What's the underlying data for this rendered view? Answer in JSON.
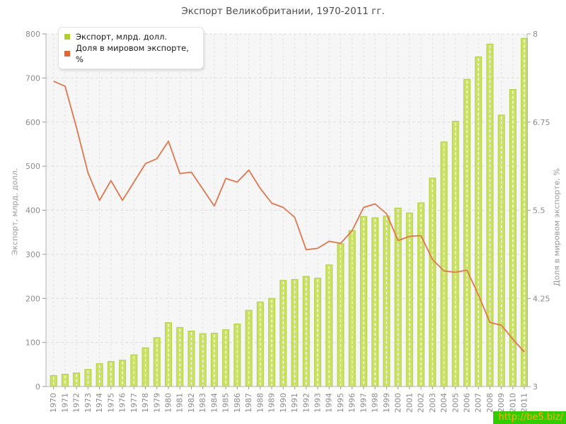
{
  "title": "Экспорт Великобритании, 1970-2011 гг.",
  "legend": {
    "items": [
      {
        "label": "Экспорт, млрд. долл.",
        "color": "#aed027"
      },
      {
        "label": "Доля в мировом экспорте, %",
        "color": "#e2662c"
      }
    ]
  },
  "watermark": {
    "text": "http://be5.biz/",
    "bg_color": "#33cc00",
    "text_color": "#ffae00"
  },
  "chart_data": {
    "type": "bar",
    "title": "Экспорт Великобритании, 1970-2011 гг.",
    "categories": [
      "1970",
      "1971",
      "1972",
      "1973",
      "1974",
      "1975",
      "1976",
      "1977",
      "1978",
      "1979",
      "1980",
      "1981",
      "1982",
      "1983",
      "1984",
      "1985",
      "1986",
      "1987",
      "1988",
      "1989",
      "1990",
      "1991",
      "1992",
      "1993",
      "1994",
      "1995",
      "1996",
      "1997",
      "1998",
      "1999",
      "2000",
      "2001",
      "2002",
      "2003",
      "2004",
      "2005",
      "2006",
      "2007",
      "2008",
      "2009",
      "2010",
      "2011"
    ],
    "series": [
      {
        "name": "Экспорт, млрд. долл.",
        "type": "bar",
        "axis": "left",
        "color": "#cbe164",
        "values": [
          25,
          28,
          31,
          39,
          52,
          57,
          60,
          72,
          88,
          111,
          145,
          134,
          126,
          120,
          121,
          129,
          142,
          173,
          192,
          200,
          241,
          243,
          250,
          246,
          276,
          324,
          354,
          386,
          383,
          387,
          405,
          394,
          417,
          473,
          555,
          602,
          697,
          748,
          777,
          616,
          674,
          790
        ]
      },
      {
        "name": "Доля в мировом экспорте, %",
        "type": "line",
        "axis": "right",
        "color": "#e1764d",
        "values": [
          7.33,
          7.26,
          6.67,
          6.03,
          5.64,
          5.92,
          5.64,
          5.9,
          6.16,
          6.23,
          6.48,
          6.02,
          6.04,
          5.8,
          5.56,
          5.95,
          5.9,
          6.07,
          5.81,
          5.6,
          5.54,
          5.4,
          4.94,
          4.96,
          5.06,
          5.03,
          5.21,
          5.54,
          5.59,
          5.45,
          5.07,
          5.13,
          5.14,
          4.8,
          4.64,
          4.62,
          4.65,
          4.3,
          3.91,
          3.87,
          3.67,
          3.49
        ]
      }
    ],
    "left_axis": {
      "label": "Экспорт, млрд. долл.",
      "min": 0,
      "max": 800,
      "ticks": [
        "0",
        "100",
        "200",
        "300",
        "400",
        "500",
        "600",
        "700",
        "800"
      ]
    },
    "right_axis": {
      "label": "Доля в мировом экспорте, %",
      "min": 3,
      "max": 8,
      "ticks": [
        "3",
        "4.25",
        "5.5",
        "6.75",
        "8"
      ]
    },
    "grid": true,
    "legend_position": "top-left"
  }
}
